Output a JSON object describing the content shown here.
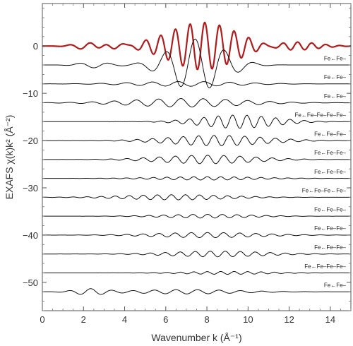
{
  "chart_data": {
    "type": "line",
    "title": "",
    "xlabel": "Wavenumber k (Å⁻¹)",
    "ylabel": "EXAFS χ(k)k² (Å⁻²)",
    "xlim": [
      0,
      15
    ],
    "ylim": [
      -56,
      9
    ],
    "xticks": [
      0,
      2,
      4,
      6,
      8,
      10,
      12,
      14
    ],
    "yticks": [
      0,
      -10,
      -20,
      -30,
      -40,
      -50
    ],
    "grid": false,
    "legend": "none",
    "total": {
      "color": "#b01c1c",
      "offset": 0,
      "components": [
        {
          "a": 0.7,
          "f": 3.0,
          "c": 2.2,
          "w": 0.9,
          "p": 0.0
        },
        {
          "a": 0.8,
          "f": 3.3,
          "c": 3.8,
          "w": 0.9,
          "p": 0.5
        },
        {
          "a": 5.0,
          "f": 4.4,
          "c": 7.8,
          "w": 2.3,
          "p": 1.2
        },
        {
          "a": 0.9,
          "f": 4.6,
          "c": 12.2,
          "w": 1.6,
          "p": 0.4
        }
      ]
    },
    "series": [
      {
        "label": "Fe←Fe–",
        "offset": -4,
        "components": [
          {
            "a": 5.5,
            "f": 2.2,
            "c": 7.5,
            "w": 1.8,
            "p": 0.3
          },
          {
            "a": 0.6,
            "f": 2.2,
            "c": 2.5,
            "w": 1.0,
            "p": 0.0
          }
        ]
      },
      {
        "label": "Fe←Fe–",
        "offset": -8,
        "components": [
          {
            "a": 0.5,
            "f": 2.5,
            "c": 7.0,
            "w": 3.5,
            "p": 0.0
          }
        ]
      },
      {
        "label": "Fe←Fe–",
        "offset": -12,
        "components": [
          {
            "a": 0.9,
            "f": 2.9,
            "c": 7.0,
            "w": 3.8,
            "p": 0.2
          }
        ]
      },
      {
        "label": "Fe←Fe–Fe–Fe–Fe–",
        "offset": -16,
        "components": [
          {
            "a": 1.4,
            "f": 4.5,
            "c": 9.5,
            "w": 2.5,
            "p": 0.0
          }
        ]
      },
      {
        "label": "Fe←Fe–Fe–",
        "offset": -20,
        "components": [
          {
            "a": 1.1,
            "f": 4.2,
            "c": 8.5,
            "w": 3.2,
            "p": 0.6
          }
        ]
      },
      {
        "label": "Fe←Fe–Fe–",
        "offset": -24,
        "components": [
          {
            "a": 0.9,
            "f": 4.0,
            "c": 8.0,
            "w": 3.2,
            "p": 0.1
          }
        ]
      },
      {
        "label": "Fe←Fe–Fe–",
        "offset": -28,
        "components": [
          {
            "a": 0.35,
            "f": 4.8,
            "c": 8.0,
            "w": 3.5,
            "p": 0.0
          }
        ]
      },
      {
        "label": "Fe←Fe–Fe←Fe–",
        "offset": -32,
        "components": [
          {
            "a": 0.55,
            "f": 4.6,
            "c": 6.5,
            "w": 3.5,
            "p": 0.4
          }
        ]
      },
      {
        "label": "Fe←Fe–Fe–",
        "offset": -36,
        "components": [
          {
            "a": 0.4,
            "f": 4.4,
            "c": 8.0,
            "w": 3.0,
            "p": 0.0
          }
        ]
      },
      {
        "label": "Fe←Fe–Fe–",
        "offset": -40,
        "components": [
          {
            "a": 0.55,
            "f": 4.0,
            "c": 8.0,
            "w": 3.5,
            "p": 0.2
          }
        ]
      },
      {
        "label": "Fe←Fe–Fe–",
        "offset": -44,
        "components": [
          {
            "a": 0.6,
            "f": 4.3,
            "c": 8.5,
            "w": 3.2,
            "p": 0.5
          }
        ]
      },
      {
        "label": "Fe←Fe–Fe–Fe–",
        "offset": -48,
        "components": [
          {
            "a": 0.3,
            "f": 4.8,
            "c": 9.0,
            "w": 3.0,
            "p": 0.0
          }
        ]
      },
      {
        "label": "Fe←Fe–",
        "offset": -52,
        "components": [
          {
            "a": 0.6,
            "f": 3.0,
            "c": 2.3,
            "w": 1.0,
            "p": 0.0
          },
          {
            "a": 0.45,
            "f": 3.0,
            "c": 7.0,
            "w": 3.5,
            "p": 0.3
          }
        ]
      }
    ]
  }
}
